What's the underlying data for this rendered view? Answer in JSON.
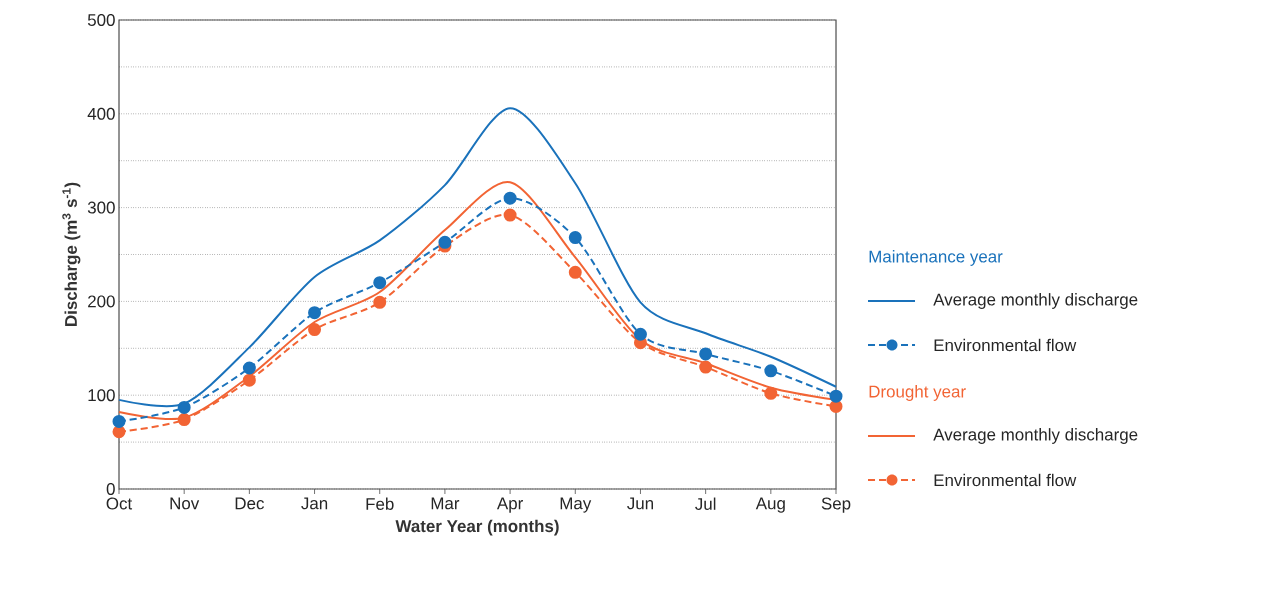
{
  "chart_data": {
    "type": "line",
    "xlabel": "Water Year (months)",
    "ylabel": "Discharge (m$^{3}$ s$^{-1}$)",
    "categories": [
      "Oct",
      "Nov",
      "Dec",
      "Jan",
      "Feb",
      "Mar",
      "Apr",
      "May",
      "Jun",
      "Jul",
      "Aug",
      "Sep"
    ],
    "ylim": [
      0,
      500
    ],
    "yticks": [
      0,
      {
        "value": 50,
        "label": null
      },
      100,
      {
        "value": 150,
        "label": null
      },
      200,
      {
        "value": 250,
        "label": null
      },
      300,
      {
        "value": 350,
        "label": null
      },
      400,
      {
        "value": 450,
        "label": null
      },
      500
    ],
    "grid": "y",
    "legend": "right",
    "annotations": [
      "Maintenance year",
      "Drought year"
    ],
    "series": [
      {
        "name": "Average monthly discharge",
        "color": "#1a72bb",
        "line_style": "solid",
        "marker": "none",
        "values": [
          95,
          91,
          151,
          226,
          265,
          324,
          406,
          326,
          199,
          166,
          141,
          109
        ]
      },
      {
        "name": "Environmental flow",
        "color": "#1a72bb",
        "line_style": "dashed",
        "marker": "circle",
        "values": [
          72,
          87,
          129,
          188,
          220,
          263,
          310,
          268,
          165,
          144,
          126,
          99
        ]
      },
      {
        "name": "Average monthly discharge",
        "color": "#f26434",
        "line_style": "solid",
        "marker": "none",
        "values": [
          82,
          76,
          120,
          178,
          210,
          276,
          327,
          247,
          159,
          134,
          108,
          95
        ]
      },
      {
        "name": "Environmental flow",
        "color": "#f26434",
        "line_style": "dashed",
        "marker": "circle",
        "values": [
          61,
          74,
          116,
          170,
          199,
          259,
          292,
          231,
          156,
          130,
          102,
          88
        ]
      }
    ]
  }
}
